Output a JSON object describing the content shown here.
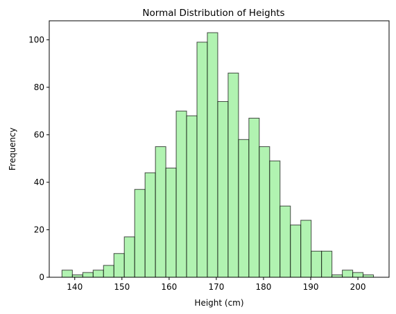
{
  "chart_data": {
    "type": "bar",
    "title": "Normal Distribution of Heights",
    "xlabel": "Height (cm)",
    "ylabel": "Frequency",
    "xlim": [
      134.6,
      206.6
    ],
    "ylim": [
      0,
      108
    ],
    "xticks": [
      140,
      150,
      160,
      170,
      180,
      190,
      200
    ],
    "yticks": [
      0,
      20,
      40,
      60,
      80,
      100
    ],
    "bin_edges": [
      137.3,
      139.5,
      141.7,
      143.9,
      146.1,
      148.3,
      150.5,
      152.7,
      154.9,
      157.1,
      159.3,
      161.5,
      163.7,
      165.9,
      168.1,
      170.3,
      172.5,
      174.7,
      176.9,
      179.1,
      181.3,
      183.5,
      185.7,
      187.9,
      190.1,
      192.3,
      194.5,
      196.7,
      198.9,
      201.1,
      203.3
    ],
    "values": [
      3,
      1,
      2,
      3,
      5,
      10,
      17,
      37,
      44,
      55,
      46,
      70,
      68,
      99,
      103,
      74,
      86,
      58,
      67,
      55,
      49,
      30,
      22,
      24,
      11,
      11,
      1,
      3,
      2,
      1
    ],
    "bar_color": "#90ee90",
    "edge_color": "#000000",
    "grid": false
  }
}
